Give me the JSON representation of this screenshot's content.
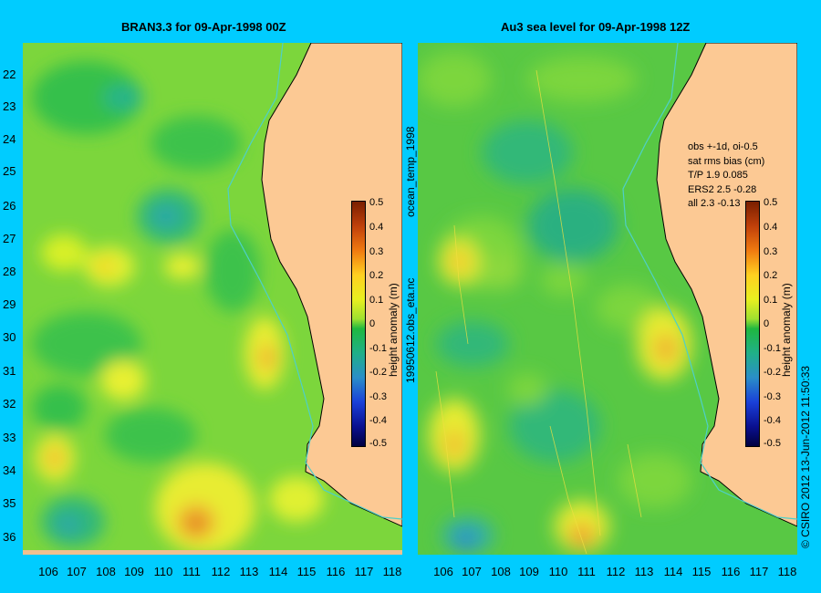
{
  "left_panel": {
    "title": "BRAN3.3 for 09-Apr-1998 00Z"
  },
  "right_panel": {
    "title": "Au3 sea level  for 09-Apr-1998 12Z"
  },
  "lat_labels": [
    "22",
    "23",
    "24",
    "25",
    "26",
    "27",
    "28",
    "29",
    "30",
    "31",
    "32",
    "33",
    "34",
    "35",
    "36"
  ],
  "lon_labels": [
    "106",
    "107",
    "108",
    "109",
    "110",
    "111",
    "112",
    "113",
    "114",
    "115",
    "116",
    "117",
    "118"
  ],
  "colorbar": {
    "label": "height anomaly (m)",
    "ticks": [
      "0.5",
      "0.4",
      "0.3",
      "0.2",
      "0.1",
      "0",
      "-0.1",
      "-0.2",
      "-0.3",
      "-0.4",
      "-0.5"
    ]
  },
  "stats": {
    "lines": [
      "obs +-1d, oi-0.5",
      "sat rms bias (cm)",
      "T/P  1.9 0.085",
      "ERS2 2.5 -0.28",
      "all 2.3 -0.13"
    ]
  },
  "side_text": {
    "file_top": "ocean_temp_1998",
    "file_bottom": "19950612.obs_eta.nc",
    "credit": "© CSIRO 2012   13-Jun-2012 11:50:33"
  },
  "colors": {
    "background": "#00ccff",
    "land": "#fcc994",
    "ocean_base": "#7cd63c"
  }
}
